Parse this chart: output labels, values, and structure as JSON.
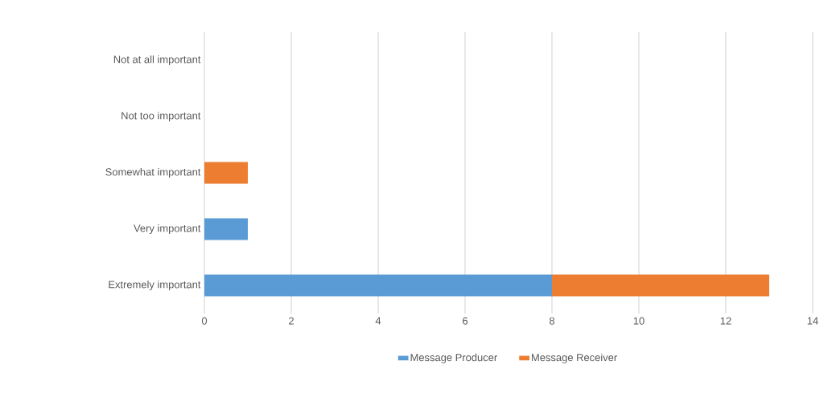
{
  "chart_data": {
    "type": "bar",
    "orientation": "horizontal",
    "stacked": true,
    "categories": [
      "Not at all important",
      "Not too important",
      "Somewhat important",
      "Very important",
      "Extremely important"
    ],
    "series": [
      {
        "name": "Message Producer",
        "color": "#5b9bd5",
        "values": [
          0,
          0,
          0,
          1,
          8
        ]
      },
      {
        "name": "Message Receiver",
        "color": "#ed7d31",
        "values": [
          0,
          0,
          1,
          0,
          5
        ]
      }
    ],
    "xlim": [
      0,
      14
    ],
    "xticks": [
      0,
      2,
      4,
      6,
      8,
      10,
      12,
      14
    ],
    "grid": "x",
    "legend": "bottom"
  }
}
